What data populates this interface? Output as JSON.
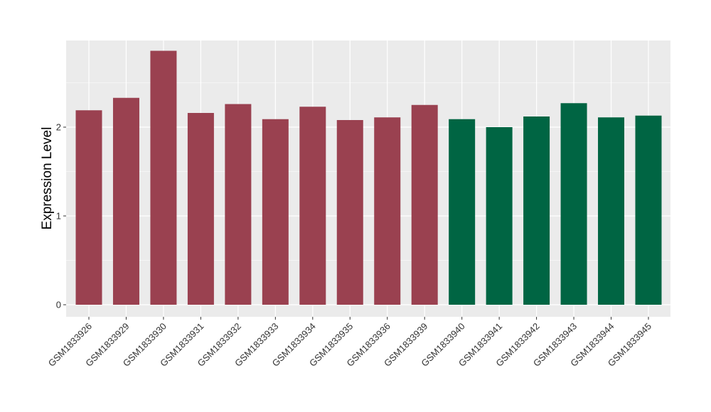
{
  "chart_data": {
    "type": "bar",
    "ylabel": "Expression Level",
    "xlabel": "",
    "ylim": [
      0,
      3.0
    ],
    "yticks": [
      0,
      1,
      2
    ],
    "grid": true,
    "categories": [
      "GSM1833926",
      "GSM1833929",
      "GSM1833930",
      "GSM1833931",
      "GSM1833932",
      "GSM1833933",
      "GSM1833934",
      "GSM1833935",
      "GSM1833936",
      "GSM1833939",
      "GSM1833940",
      "GSM1833941",
      "GSM1833942",
      "GSM1833943",
      "GSM1833944",
      "GSM1833945"
    ],
    "values": [
      2.19,
      2.33,
      2.86,
      2.16,
      2.26,
      2.09,
      2.23,
      2.08,
      2.11,
      2.25,
      2.09,
      2.0,
      2.12,
      2.27,
      2.11,
      2.13
    ],
    "group_colors": [
      "#9a4150",
      "#9a4150",
      "#9a4150",
      "#9a4150",
      "#9a4150",
      "#9a4150",
      "#9a4150",
      "#9a4150",
      "#9a4150",
      "#9a4150",
      "#006543",
      "#006543",
      "#006543",
      "#006543",
      "#006543",
      "#006543"
    ],
    "panel_background": "#ebebeb",
    "gridline_color": "#ffffff"
  }
}
